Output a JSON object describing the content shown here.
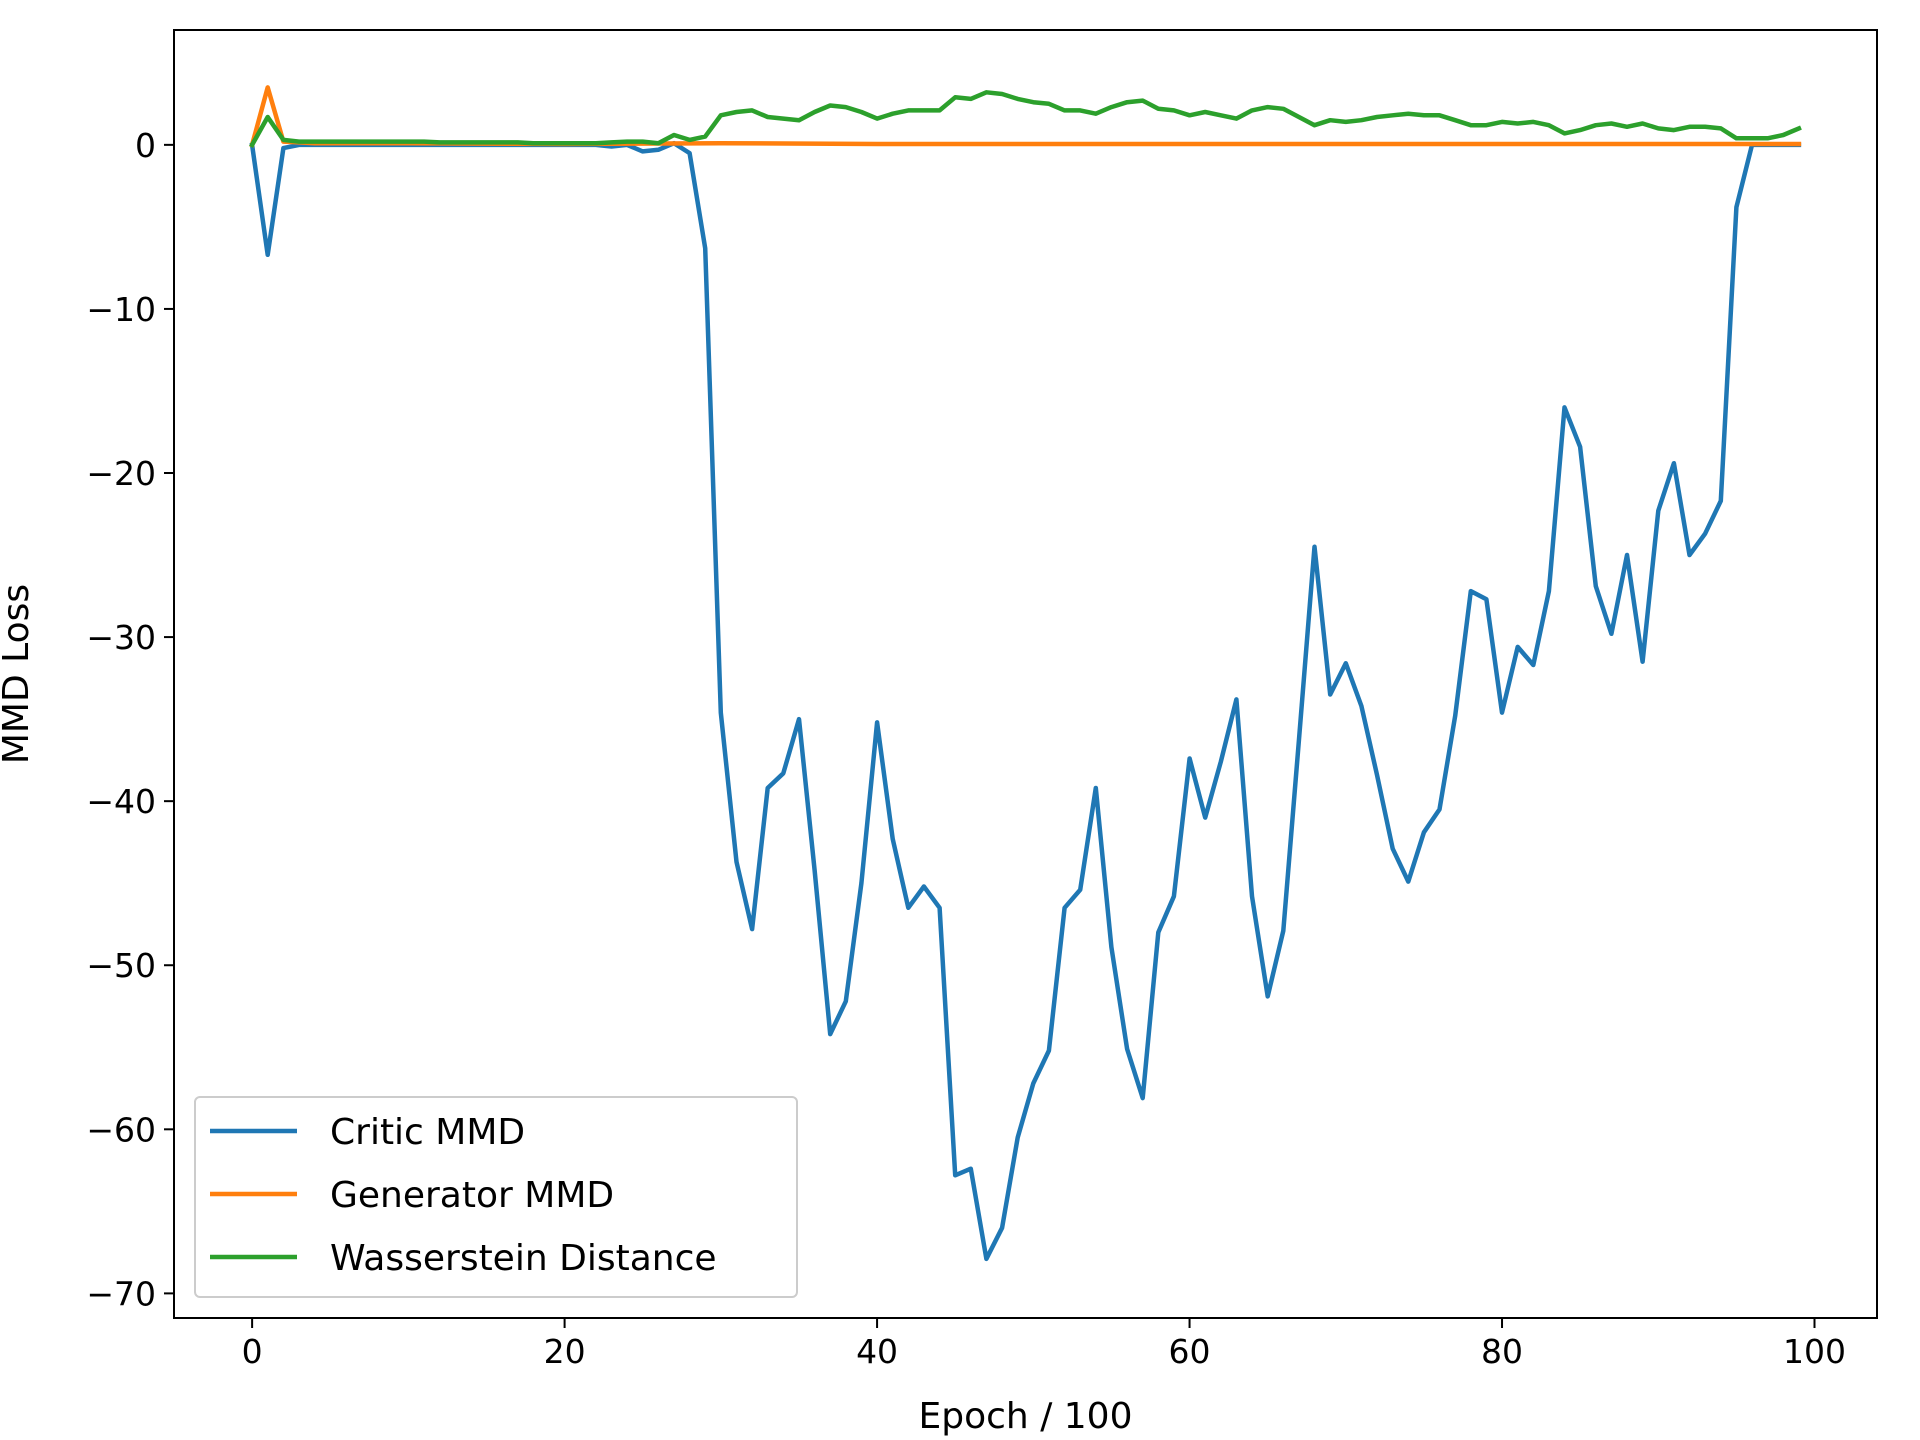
{
  "chart_data": {
    "type": "line",
    "xlabel": "Epoch / 100",
    "ylabel": "MMD Loss",
    "xlim": [
      -5,
      104
    ],
    "ylim": [
      -71.5,
      7
    ],
    "xticks": [
      0,
      20,
      40,
      60,
      80,
      100
    ],
    "yticks": [
      0,
      -10,
      -20,
      -30,
      -40,
      -50,
      -60,
      -70
    ],
    "xtick_labels": [
      "0",
      "20",
      "40",
      "60",
      "80",
      "100"
    ],
    "ytick_labels": [
      "0",
      "−10",
      "−20",
      "−30",
      "−40",
      "−50",
      "−60",
      "−70"
    ],
    "grid": false,
    "legend_position": "lower-left",
    "series": [
      {
        "name": "Critic MMD",
        "color": "#1f77b4",
        "x": [
          0,
          1,
          2,
          3,
          4,
          5,
          6,
          7,
          8,
          9,
          10,
          11,
          12,
          13,
          14,
          15,
          16,
          17,
          18,
          19,
          20,
          21,
          22,
          23,
          24,
          25,
          26,
          27,
          28,
          29,
          30,
          31,
          32,
          33,
          34,
          35,
          36,
          37,
          38,
          39,
          40,
          41,
          42,
          43,
          44,
          45,
          46,
          47,
          48,
          49,
          50,
          51,
          52,
          53,
          54,
          55,
          56,
          57,
          58,
          59,
          60,
          61,
          62,
          63,
          64,
          65,
          66,
          67,
          68,
          69,
          70,
          71,
          72,
          73,
          74,
          75,
          76,
          77,
          78,
          79,
          80,
          81,
          82,
          83,
          84,
          85,
          86,
          87,
          88,
          89,
          90,
          91,
          92,
          93,
          94,
          95,
          96,
          97,
          98,
          99
        ],
        "values": [
          0,
          -6.7,
          -0.2,
          0,
          0,
          0,
          0,
          0,
          0,
          0,
          0,
          0,
          0,
          0,
          0,
          0,
          0,
          0,
          0,
          0,
          0,
          0,
          0,
          -0.1,
          0,
          -0.4,
          -0.3,
          0.1,
          -0.5,
          -6.3,
          -34.6,
          -43.7,
          -47.8,
          -39.2,
          -38.3,
          -35.0,
          -44.2,
          -54.2,
          -52.2,
          -45.0,
          -35.2,
          -42.3,
          -46.5,
          -45.2,
          -46.5,
          -62.8,
          -62.4,
          -67.9,
          -66.0,
          -60.5,
          -57.2,
          -55.2,
          -46.5,
          -45.4,
          -39.2,
          -48.9,
          -55.1,
          -58.1,
          -48.0,
          -45.8,
          -37.4,
          -41.0,
          -37.6,
          -33.8,
          -45.8,
          -51.9,
          -47.9,
          -36.3,
          -24.5,
          -33.5,
          -31.6,
          -34.2,
          -38.4,
          -42.9,
          -44.9,
          -41.9,
          -40.5,
          -34.8,
          -27.2,
          -27.7,
          -34.6,
          -30.6,
          -31.7,
          -27.2,
          -16.0,
          -18.4,
          -26.9,
          -29.8,
          -25.0,
          -31.5,
          -22.3,
          -19.4,
          -25.0,
          -23.7,
          -21.7,
          -3.8,
          0,
          0,
          0,
          0
        ]
      },
      {
        "name": "Generator MMD",
        "color": "#ff7f0e",
        "x": [
          0,
          1,
          2,
          3,
          4,
          5,
          10,
          20,
          30,
          40,
          50,
          60,
          70,
          80,
          90,
          99
        ],
        "values": [
          0,
          3.5,
          0.2,
          0.15,
          0.1,
          0.1,
          0.1,
          0.05,
          0.1,
          0.05,
          0.05,
          0.05,
          0.05,
          0.05,
          0.05,
          0.05
        ]
      },
      {
        "name": "Wasserstein Distance",
        "color": "#2ca02c",
        "x": [
          0,
          1,
          2,
          3,
          4,
          5,
          6,
          7,
          8,
          9,
          10,
          11,
          12,
          13,
          14,
          15,
          16,
          17,
          18,
          19,
          20,
          21,
          22,
          23,
          24,
          25,
          26,
          27,
          28,
          29,
          30,
          31,
          32,
          33,
          34,
          35,
          36,
          37,
          38,
          39,
          40,
          41,
          42,
          43,
          44,
          45,
          46,
          47,
          48,
          49,
          50,
          51,
          52,
          53,
          54,
          55,
          56,
          57,
          58,
          59,
          60,
          61,
          62,
          63,
          64,
          65,
          66,
          67,
          68,
          69,
          70,
          71,
          72,
          73,
          74,
          75,
          76,
          77,
          78,
          79,
          80,
          81,
          82,
          83,
          84,
          85,
          86,
          87,
          88,
          89,
          90,
          91,
          92,
          93,
          94,
          95,
          96,
          97,
          98,
          99
        ],
        "values": [
          0,
          1.7,
          0.3,
          0.2,
          0.2,
          0.2,
          0.2,
          0.2,
          0.2,
          0.2,
          0.2,
          0.2,
          0.15,
          0.15,
          0.15,
          0.15,
          0.15,
          0.15,
          0.1,
          0.1,
          0.1,
          0.1,
          0.1,
          0.15,
          0.2,
          0.2,
          0.1,
          0.6,
          0.3,
          0.5,
          1.8,
          2.0,
          2.1,
          1.7,
          1.6,
          1.5,
          2.0,
          2.4,
          2.3,
          2.0,
          1.6,
          1.9,
          2.1,
          2.1,
          2.1,
          2.9,
          2.8,
          3.2,
          3.1,
          2.8,
          2.6,
          2.5,
          2.1,
          2.1,
          1.9,
          2.3,
          2.6,
          2.7,
          2.2,
          2.1,
          1.8,
          2.0,
          1.8,
          1.6,
          2.1,
          2.3,
          2.2,
          1.7,
          1.2,
          1.5,
          1.4,
          1.5,
          1.7,
          1.8,
          1.9,
          1.8,
          1.8,
          1.5,
          1.2,
          1.2,
          1.4,
          1.3,
          1.4,
          1.2,
          0.7,
          0.9,
          1.2,
          1.3,
          1.1,
          1.3,
          1.0,
          0.9,
          1.1,
          1.1,
          1.0,
          0.4,
          0.4,
          0.4,
          0.6,
          1.0
        ]
      }
    ]
  }
}
